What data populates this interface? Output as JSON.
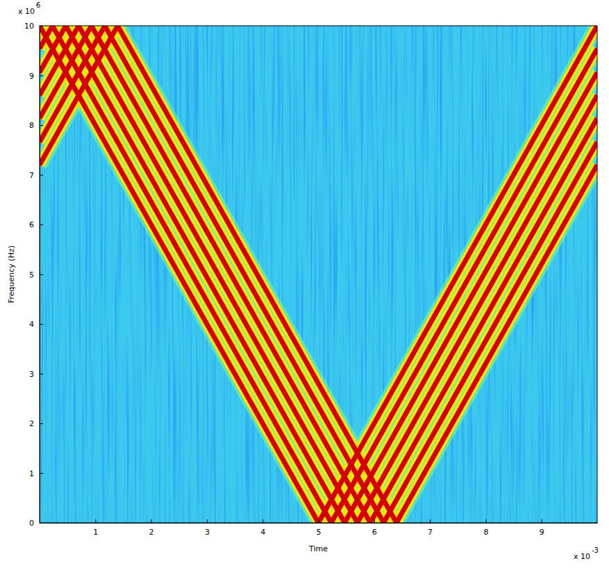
{
  "chart_data": {
    "type": "line",
    "xlabel": "Time",
    "ylabel": "Frequency (Hz)",
    "x_multiplier": "x 10",
    "x_exponent": "-3",
    "y_multiplier": "x 10",
    "y_exponent": "6",
    "xlim": [
      0,
      10
    ],
    "xticks": [
      1,
      2,
      3,
      4,
      5,
      6,
      7,
      8,
      9
    ],
    "ylim": [
      0,
      10
    ],
    "yticks": [
      0,
      1,
      2,
      3,
      4,
      5,
      6,
      7,
      8,
      9,
      10
    ],
    "grid": false,
    "series": [
      {
        "color": "#d40000",
        "x": [
          0,
          5,
          10
        ],
        "values": [
          10,
          0,
          10
        ]
      },
      {
        "color": "#d40000",
        "x": [
          0,
          0.23,
          5.23,
          10
        ],
        "values": [
          9.54,
          10,
          0,
          9.54
        ]
      },
      {
        "color": "#d40000",
        "x": [
          0,
          0.47,
          5.47,
          10
        ],
        "values": [
          9.06,
          10,
          0,
          9.06
        ]
      },
      {
        "color": "#d40000",
        "x": [
          0,
          0.7,
          5.7,
          10
        ],
        "values": [
          8.6,
          10,
          0,
          8.6
        ]
      },
      {
        "color": "#d40000",
        "x": [
          0,
          0.93,
          5.93,
          10
        ],
        "values": [
          8.14,
          10,
          0,
          8.14
        ]
      },
      {
        "color": "#d40000",
        "x": [
          0,
          1.17,
          6.17,
          10
        ],
        "values": [
          7.66,
          10,
          0,
          7.66
        ]
      },
      {
        "color": "#d40000",
        "x": [
          0,
          1.4,
          6.4,
          10
        ],
        "values": [
          7.2,
          10,
          0,
          7.2
        ]
      }
    ]
  }
}
